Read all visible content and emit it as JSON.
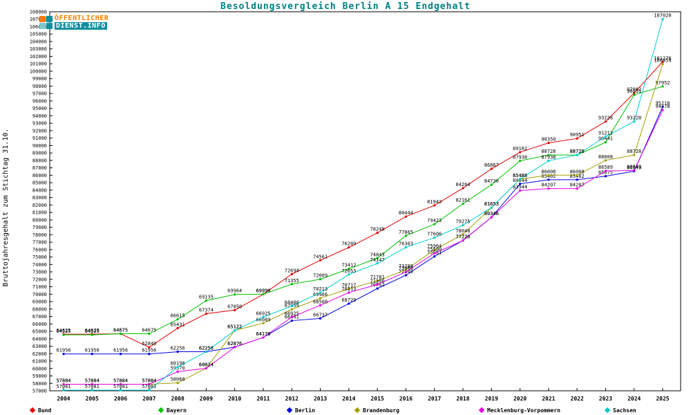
{
  "header": {
    "logo": {
      "line1": "ÖFFENTLICHER",
      "line2": "DIENST.INFO"
    },
    "title": "Besoldungsvergleich Berlin A 15 Endgehalt"
  },
  "colors": {
    "title_teal": "#008080",
    "logo_orange": "#f08000",
    "logo_teal": "#0e8f9f",
    "axis": "#000000"
  },
  "chart_data": {
    "type": "line",
    "title": "Besoldungsvergleich Berlin A 15 Endgehalt",
    "xlabel": "",
    "ylabel": "Bruttojahresgehalt zum Stichtag 31.10.",
    "ylim": [
      57000,
      108000
    ],
    "ytick_step": 1000,
    "grid": false,
    "point_labels": true,
    "legend_position": "bottom",
    "categories": [
      2004,
      2005,
      2006,
      2007,
      2008,
      2009,
      2010,
      2011,
      2012,
      2013,
      2014,
      2015,
      2016,
      2017,
      2018,
      2019,
      2020,
      2021,
      2022,
      2023,
      2024,
      2025
    ],
    "series": [
      {
        "name": "Bund",
        "color": "#e00000",
        "values": [
          64625,
          64625,
          64675,
          62849,
          65431,
          67374,
          67850,
          69990,
          72694,
          74561,
          76289,
          78248,
          80444,
          81943,
          84264,
          86867,
          89102,
          90350,
          90951,
          93228,
          97062,
          101276
        ]
      },
      {
        "name": "Bayern",
        "color": "#00c000",
        "values": [
          64525,
          64525,
          64675,
          64675,
          66615,
          69135,
          69964,
          69990,
          71355,
          72009,
          73412,
          74843,
          77865,
          79423,
          82161,
          84730,
          87938,
          88728,
          88728,
          90441,
          96831,
          97952
        ]
      },
      {
        "name": "Berlin",
        "color": "#0000e0",
        "values": [
          61956,
          61956,
          61956,
          61956,
          62256,
          62256,
          62876,
          64170,
          66441,
          66737,
          68729,
          70762,
          72549,
          75081,
          77226,
          80346,
          84844,
          85402,
          85402,
          85875,
          86549,
          95218
        ]
      },
      {
        "name": "Brandenburg",
        "color": "#a0a000",
        "values": [
          57884,
          57884,
          57884,
          57884,
          58068,
          60024,
          65122,
          66089,
          67959,
          69466,
          70717,
          71781,
          73288,
          75964,
          78048,
          81653,
          85488,
          86008,
          86008,
          88008,
          88728,
          100959
        ]
      },
      {
        "name": "Mecklenburg-Vorpommern",
        "color": "#e000e0",
        "values": [
          57884,
          57884,
          57884,
          57884,
          59570,
          60024,
          62876,
          64170,
          66925,
          68500,
          70213,
          71300,
          73000,
          75500,
          77226,
          80346,
          83944,
          84207,
          84207,
          86589,
          86649,
          94778
        ]
      },
      {
        "name": "Sachsen",
        "color": "#00cccc",
        "values": [
          57081,
          57081,
          57081,
          57081,
          60196,
          62256,
          65122,
          66925,
          68400,
          70213,
          72653,
          74147,
          76303,
          77606,
          79275,
          81653,
          85488,
          87938,
          88728,
          91212,
          93228,
          107020
        ]
      }
    ]
  }
}
